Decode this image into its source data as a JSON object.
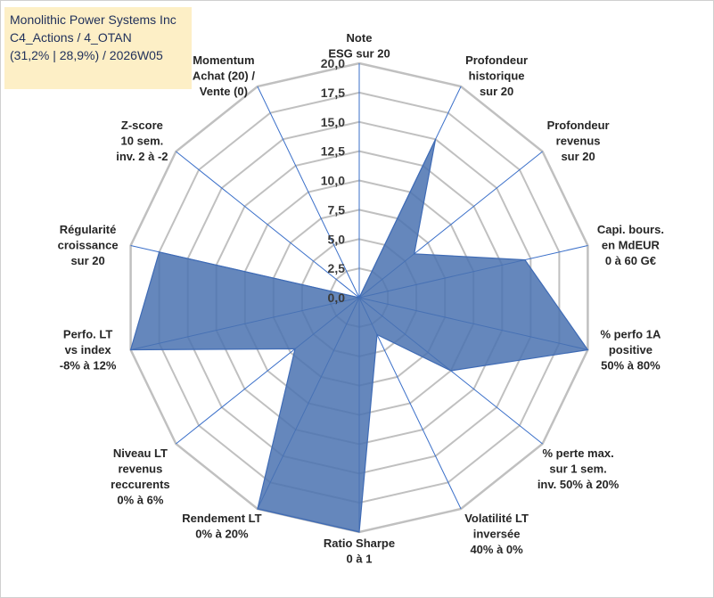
{
  "info_box": {
    "company": "Monolithic Power Systems Inc",
    "category": "C4_Actions / 4_OTAN",
    "stats": "(31,2% | 28,9%) / 2026W05"
  },
  "chart_data": {
    "type": "radar",
    "title": "",
    "axes": [
      {
        "label": [
          "Note",
          "ESG sur 20"
        ],
        "value": 0.0
      },
      {
        "label": [
          "Profondeur",
          "historique",
          "sur 20"
        ],
        "value": 15.0
      },
      {
        "label": [
          "Profondeur",
          "revenus",
          "sur 20"
        ],
        "value": 6.0
      },
      {
        "label": [
          "Capi. bours.",
          "en MdEUR",
          "0 à 60 G€"
        ],
        "value": 14.5
      },
      {
        "label": [
          "% perfo 1A",
          "positive",
          "50% à 80%"
        ],
        "value": 20.0
      },
      {
        "label": [
          "% perte max.",
          "sur 1 sem.",
          "inv. 50% à 20%"
        ],
        "value": 10.0
      },
      {
        "label": [
          "Volatilité LT",
          "inversée",
          "40% à 0%"
        ],
        "value": 3.5
      },
      {
        "label": [
          "Ratio Sharpe",
          "0 à 1"
        ],
        "value": 20.0
      },
      {
        "label": [
          "Rendement LT",
          "0% à 20%"
        ],
        "value": 20.0
      },
      {
        "label": [
          "Niveau LT",
          "revenus",
          "reccurents",
          "0% à 6%"
        ],
        "value": 7.0
      },
      {
        "label": [
          "Perfo. LT",
          "vs index",
          "-8% à 12%"
        ],
        "value": 20.0
      },
      {
        "label": [
          "Régularité",
          "croissance",
          "sur 20"
        ],
        "value": 17.5
      },
      {
        "label": [
          "Z-score",
          "10 sem.",
          "inv. 2 à -2"
        ],
        "value": 0.0
      },
      {
        "label": [
          "Momentum",
          "Achat (20) /",
          "Vente (0)"
        ],
        "value": 0.0
      }
    ],
    "rlim": [
      0,
      20
    ],
    "ticks": [
      "0,0",
      "2,5",
      "5,0",
      "7,5",
      "10,0",
      "12,5",
      "15,0",
      "17,5",
      "20,0"
    ],
    "colors": {
      "fill": "#4a72b0",
      "stroke": "#3f6bb5",
      "grid": "#c0c0c0",
      "spoke": "#3a6fc9"
    }
  }
}
